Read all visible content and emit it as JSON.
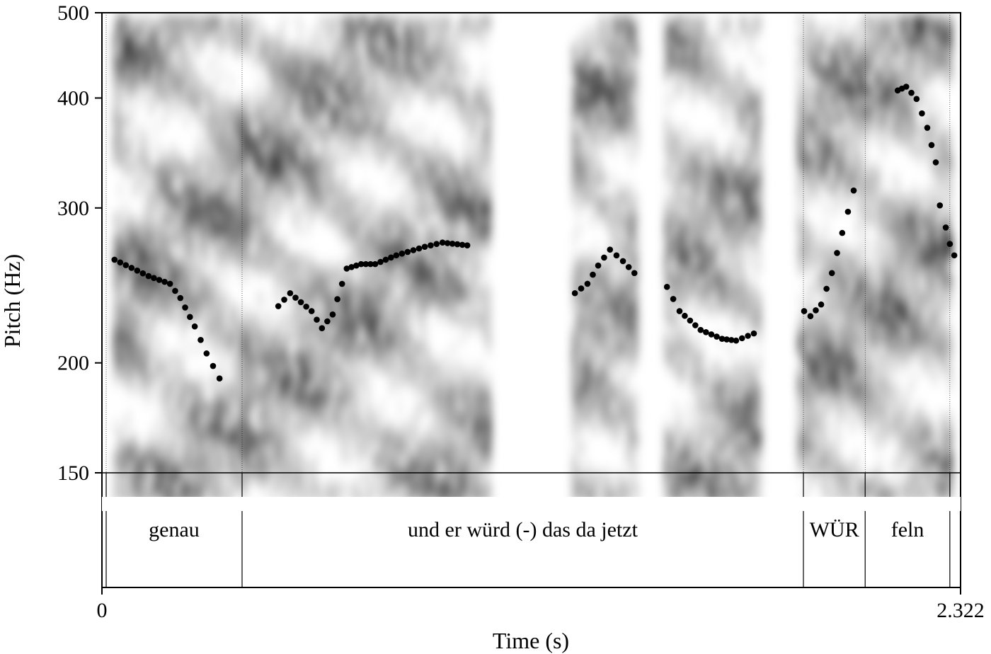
{
  "chart_data": {
    "type": "scatter",
    "xlabel": "Time (s)",
    "ylabel": "Pitch (Hz)",
    "xlim": [
      0,
      2.322
    ],
    "ylim": [
      150,
      500
    ],
    "y_scale": "log",
    "x_tick_labels": [
      "0",
      "2.322"
    ],
    "y_ticks": [
      150,
      200,
      300,
      400,
      500
    ],
    "y_tick_labels": [
      "150",
      "200",
      "300",
      "400",
      "500"
    ],
    "background": "spectrogram (grayscale)",
    "point_color": "#000000",
    "series": [
      {
        "points": [
          [
            0.034,
            262
          ],
          [
            0.126,
            251
          ],
          [
            0.184,
            246
          ],
          [
            0.212,
            237
          ],
          [
            0.251,
            220
          ],
          [
            0.283,
            205
          ],
          [
            0.318,
            192
          ]
        ]
      },
      {
        "points": [
          [
            0.477,
            232
          ],
          [
            0.509,
            240
          ],
          [
            0.567,
            229
          ],
          [
            0.595,
            219
          ],
          [
            0.624,
            227
          ],
          [
            0.662,
            256
          ],
          [
            0.701,
            259
          ],
          [
            0.739,
            259
          ],
          [
            0.796,
            265
          ],
          [
            0.873,
            271
          ],
          [
            0.921,
            274
          ],
          [
            0.988,
            272
          ]
        ]
      },
      {
        "points": [
          [
            1.279,
            240
          ],
          [
            1.313,
            246
          ],
          [
            1.342,
            258
          ],
          [
            1.374,
            269
          ],
          [
            1.409,
            261
          ],
          [
            1.44,
            253
          ]
        ]
      },
      {
        "points": [
          [
            1.528,
            244
          ],
          [
            1.562,
            229
          ],
          [
            1.619,
            218
          ],
          [
            1.677,
            213
          ],
          [
            1.715,
            212
          ],
          [
            1.763,
            216
          ]
        ]
      },
      {
        "points": [
          [
            1.899,
            229
          ],
          [
            1.916,
            226
          ],
          [
            1.945,
            233
          ],
          [
            1.974,
            253
          ],
          [
            2.002,
            281
          ],
          [
            2.033,
            314
          ]
        ]
      },
      {
        "points": [
          [
            2.152,
            408
          ],
          [
            2.175,
            412
          ],
          [
            2.203,
            399
          ],
          [
            2.232,
            370
          ],
          [
            2.255,
            338
          ],
          [
            2.266,
            302
          ],
          [
            2.282,
            285
          ],
          [
            2.293,
            273
          ],
          [
            2.305,
            265
          ]
        ]
      }
    ],
    "text_tier": {
      "boundaries": [
        0.0115,
        0.379,
        1.897,
        2.064,
        2.293
      ],
      "intervals": [
        {
          "start": 0.0115,
          "end": 0.379,
          "text": "genau"
        },
        {
          "start": 0.379,
          "end": 1.897,
          "text": "und er würd (-) das da jetzt"
        },
        {
          "start": 1.897,
          "end": 2.064,
          "text": "WÜR"
        },
        {
          "start": 2.064,
          "end": 2.293,
          "text": "feln"
        }
      ]
    }
  }
}
